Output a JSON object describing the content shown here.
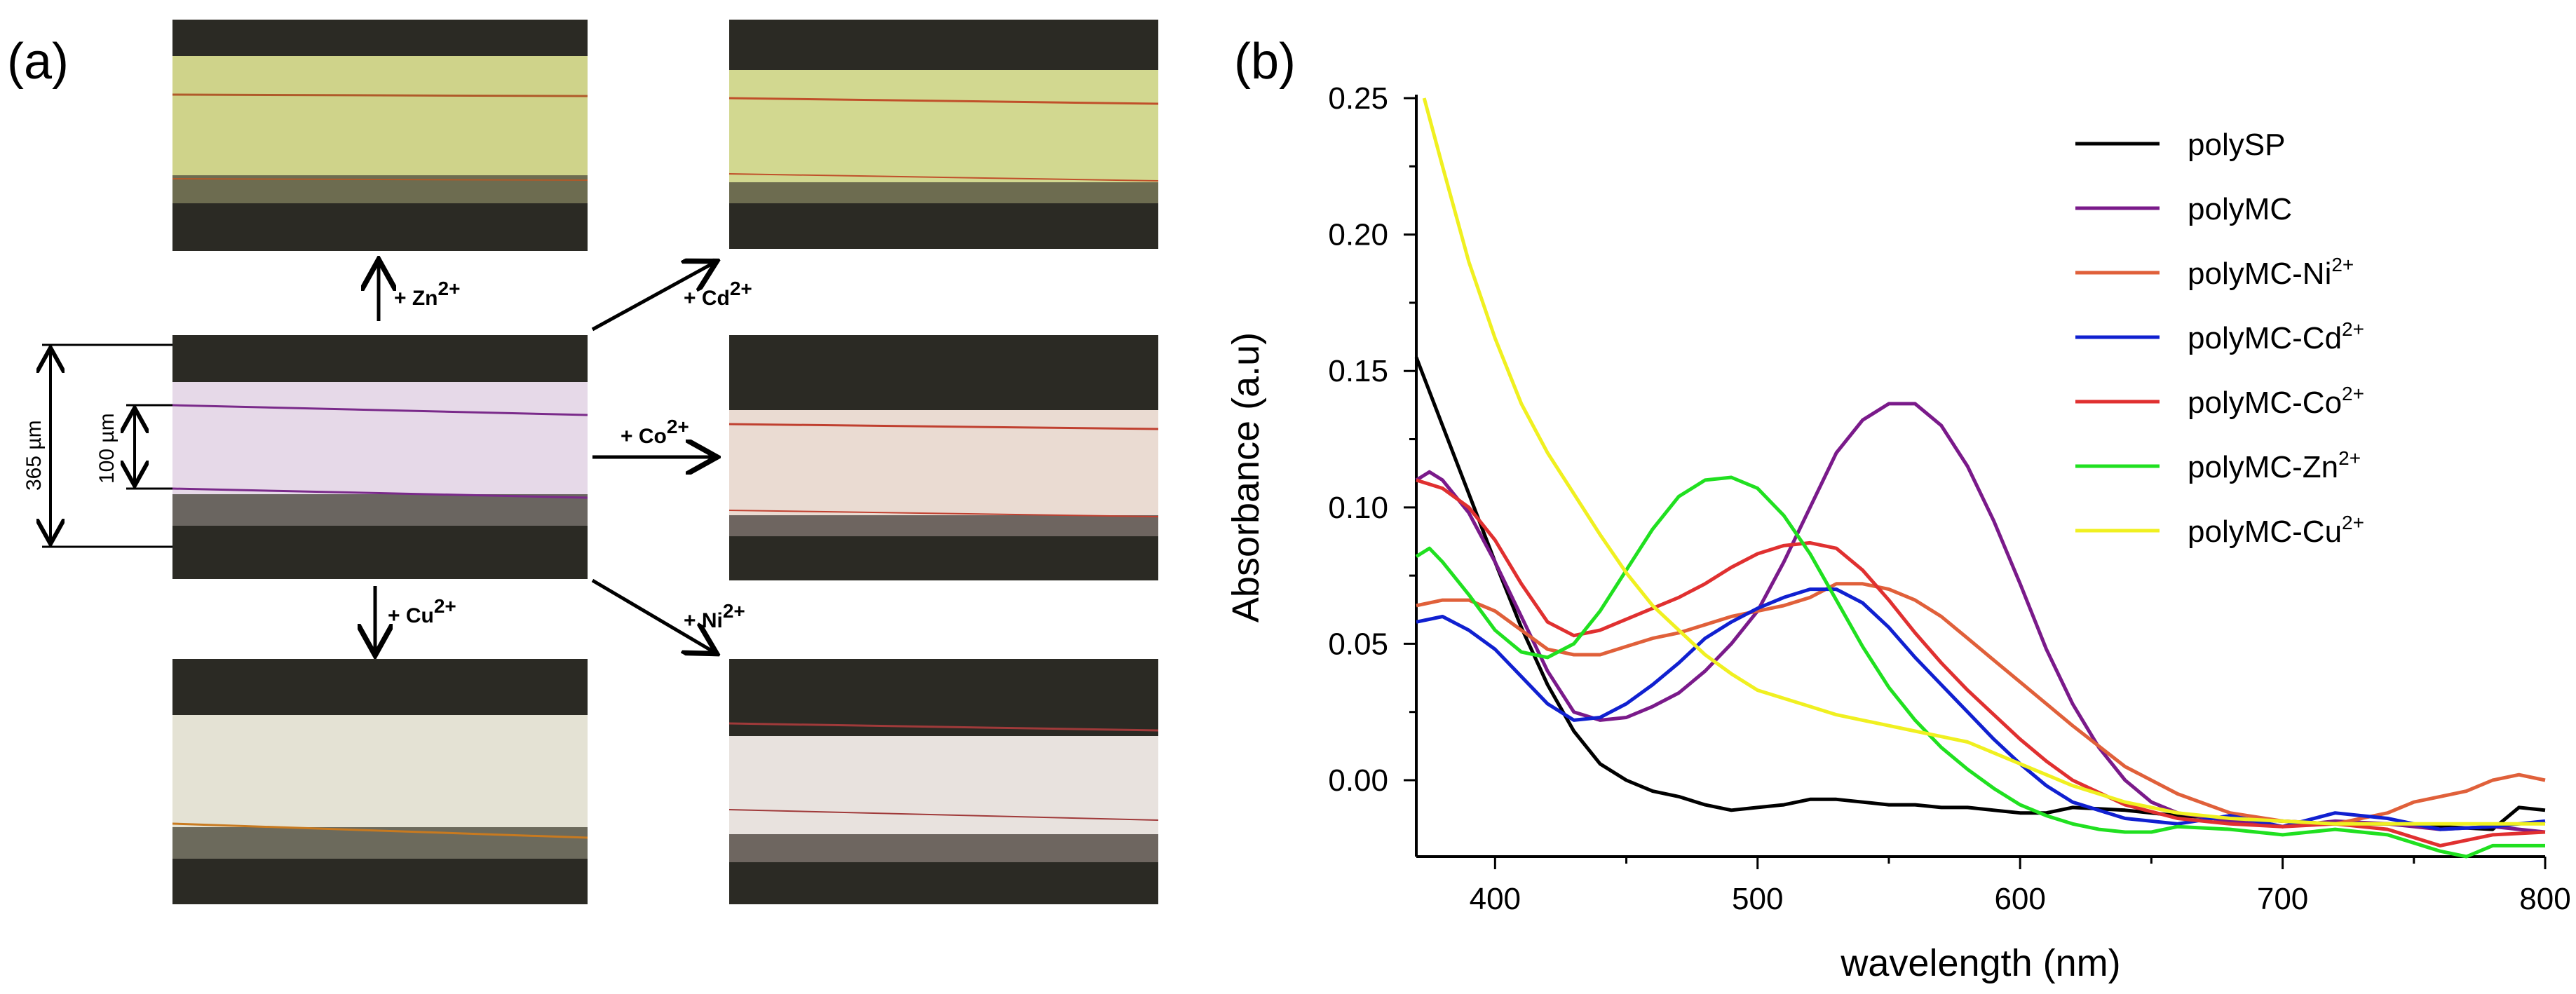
{
  "panel_a": {
    "label": "(a)",
    "dimension_outer": "365 µm",
    "dimension_inner": "100 µm",
    "arrows": [
      {
        "id": "zn",
        "ion": "+ Zn",
        "charge": "2+"
      },
      {
        "id": "cd",
        "ion": "+ Cd",
        "charge": "2+"
      },
      {
        "id": "co",
        "ion": "+ Co",
        "charge": "2+"
      },
      {
        "id": "cu",
        "ion": "+ Cu",
        "charge": "2+"
      },
      {
        "id": "ni",
        "ion": "+ Ni",
        "charge": "2+"
      }
    ],
    "colors": {
      "center_core": "#e6d9e8",
      "center_line": "#7a2a8a",
      "zn_core": "#cfd38a",
      "zn_line": "#b05a2a",
      "cd_core": "#d2d890",
      "cd_line": "#c0502a",
      "co_core": "#eadbd2",
      "co_line": "#c04030",
      "cu_core": "#e4e2d4",
      "cu_line": "#c87a20",
      "ni_core": "#e8e2de",
      "ni_line": "#a03a3a",
      "wall": "#2b2a24"
    }
  },
  "chart_data": {
    "type": "line",
    "panel_label": "(b)",
    "xlabel": "wavelength (nm)",
    "ylabel": "Absorbance (a.u)",
    "xlim": [
      370,
      800
    ],
    "ylim": [
      -0.028,
      0.25
    ],
    "xticks": [
      400,
      500,
      600,
      700,
      800
    ],
    "yticks": [
      0.0,
      0.05,
      0.1,
      0.15,
      0.2,
      0.25
    ],
    "ytick_labels": [
      "0.00",
      "0.05",
      "0.10",
      "0.15",
      "0.20",
      "0.25"
    ],
    "series": [
      {
        "name": "polySP",
        "sup": "",
        "color": "#000000",
        "x": [
          370,
          380,
          390,
          400,
          410,
          420,
          430,
          440,
          450,
          460,
          470,
          480,
          490,
          500,
          510,
          520,
          530,
          540,
          550,
          560,
          570,
          580,
          590,
          600,
          610,
          620,
          640,
          660,
          680,
          700,
          720,
          740,
          760,
          780,
          790,
          800
        ],
        "y": [
          0.155,
          0.13,
          0.105,
          0.08,
          0.056,
          0.035,
          0.018,
          0.006,
          0.0,
          -0.004,
          -0.006,
          -0.009,
          -0.011,
          -0.01,
          -0.009,
          -0.007,
          -0.007,
          -0.008,
          -0.009,
          -0.009,
          -0.01,
          -0.01,
          -0.011,
          -0.012,
          -0.012,
          -0.01,
          -0.011,
          -0.013,
          -0.014,
          -0.015,
          -0.016,
          -0.016,
          -0.017,
          -0.018,
          -0.01,
          -0.011
        ]
      },
      {
        "name": "polyMC",
        "sup": "",
        "color": "#7a1a8a",
        "x": [
          370,
          375,
          380,
          390,
          400,
          410,
          420,
          430,
          440,
          450,
          460,
          470,
          480,
          490,
          500,
          510,
          520,
          530,
          540,
          550,
          560,
          570,
          580,
          590,
          600,
          610,
          620,
          630,
          640,
          650,
          660,
          680,
          700,
          720,
          740,
          760,
          780,
          800
        ],
        "y": [
          0.11,
          0.113,
          0.11,
          0.098,
          0.08,
          0.06,
          0.04,
          0.025,
          0.022,
          0.023,
          0.027,
          0.032,
          0.04,
          0.05,
          0.062,
          0.08,
          0.1,
          0.12,
          0.132,
          0.138,
          0.138,
          0.13,
          0.115,
          0.095,
          0.072,
          0.048,
          0.028,
          0.012,
          0.0,
          -0.008,
          -0.012,
          -0.015,
          -0.017,
          -0.015,
          -0.016,
          -0.018,
          -0.017,
          -0.019
        ]
      },
      {
        "name": "polyMC-Ni",
        "sup": "2+",
        "color": "#e0603a",
        "x": [
          370,
          380,
          390,
          400,
          410,
          420,
          430,
          440,
          450,
          460,
          470,
          480,
          490,
          500,
          510,
          520,
          530,
          540,
          550,
          560,
          570,
          580,
          590,
          600,
          620,
          640,
          660,
          680,
          700,
          720,
          740,
          750,
          760,
          770,
          780,
          790,
          800
        ],
        "y": [
          0.064,
          0.066,
          0.066,
          0.062,
          0.055,
          0.048,
          0.046,
          0.046,
          0.049,
          0.052,
          0.054,
          0.057,
          0.06,
          0.062,
          0.064,
          0.067,
          0.072,
          0.072,
          0.07,
          0.066,
          0.06,
          0.052,
          0.044,
          0.036,
          0.02,
          0.005,
          -0.005,
          -0.012,
          -0.015,
          -0.016,
          -0.012,
          -0.008,
          -0.006,
          -0.004,
          0.0,
          0.002,
          0.0
        ]
      },
      {
        "name": "polyMC-Cd",
        "sup": "2+",
        "color": "#1020d0",
        "x": [
          370,
          380,
          390,
          400,
          410,
          420,
          430,
          440,
          450,
          460,
          470,
          480,
          490,
          500,
          510,
          520,
          530,
          540,
          550,
          560,
          570,
          580,
          590,
          600,
          610,
          620,
          640,
          660,
          680,
          700,
          720,
          740,
          760,
          780,
          800
        ],
        "y": [
          0.058,
          0.06,
          0.055,
          0.048,
          0.038,
          0.028,
          0.022,
          0.023,
          0.028,
          0.035,
          0.043,
          0.052,
          0.058,
          0.063,
          0.067,
          0.07,
          0.07,
          0.065,
          0.056,
          0.045,
          0.035,
          0.025,
          0.015,
          0.006,
          -0.002,
          -0.008,
          -0.014,
          -0.016,
          -0.013,
          -0.017,
          -0.012,
          -0.014,
          -0.018,
          -0.017,
          -0.015
        ]
      },
      {
        "name": "polyMC-Co",
        "sup": "2+",
        "color": "#e03030",
        "x": [
          370,
          380,
          390,
          400,
          410,
          420,
          430,
          440,
          450,
          460,
          470,
          480,
          490,
          500,
          510,
          520,
          530,
          540,
          550,
          560,
          570,
          580,
          590,
          600,
          610,
          620,
          640,
          660,
          680,
          700,
          720,
          740,
          760,
          780,
          800
        ],
        "y": [
          0.11,
          0.107,
          0.1,
          0.088,
          0.072,
          0.058,
          0.053,
          0.055,
          0.059,
          0.063,
          0.067,
          0.072,
          0.078,
          0.083,
          0.086,
          0.087,
          0.085,
          0.077,
          0.066,
          0.054,
          0.043,
          0.033,
          0.024,
          0.015,
          0.007,
          0.0,
          -0.009,
          -0.014,
          -0.016,
          -0.017,
          -0.016,
          -0.018,
          -0.024,
          -0.02,
          -0.019
        ]
      },
      {
        "name": "polyMC-Zn",
        "sup": "2+",
        "color": "#20e020",
        "x": [
          370,
          375,
          380,
          390,
          400,
          410,
          420,
          430,
          440,
          450,
          460,
          470,
          480,
          490,
          500,
          510,
          520,
          530,
          540,
          550,
          560,
          570,
          580,
          590,
          600,
          610,
          620,
          630,
          640,
          650,
          660,
          680,
          700,
          720,
          740,
          760,
          770,
          780,
          800
        ],
        "y": [
          0.082,
          0.085,
          0.08,
          0.068,
          0.055,
          0.047,
          0.045,
          0.05,
          0.062,
          0.077,
          0.092,
          0.104,
          0.11,
          0.111,
          0.107,
          0.097,
          0.083,
          0.066,
          0.049,
          0.034,
          0.022,
          0.012,
          0.004,
          -0.003,
          -0.009,
          -0.013,
          -0.016,
          -0.018,
          -0.019,
          -0.019,
          -0.017,
          -0.018,
          -0.02,
          -0.018,
          -0.02,
          -0.026,
          -0.028,
          -0.024,
          -0.024
        ]
      },
      {
        "name": "polyMC-Cu",
        "sup": "2+",
        "color": "#f0f020",
        "x": [
          373,
          380,
          390,
          400,
          410,
          420,
          430,
          440,
          450,
          460,
          470,
          480,
          490,
          500,
          510,
          520,
          530,
          540,
          550,
          560,
          570,
          580,
          590,
          600,
          610,
          620,
          640,
          660,
          680,
          700,
          720,
          740,
          760,
          780,
          800
        ],
        "y": [
          0.25,
          0.225,
          0.19,
          0.162,
          0.138,
          0.12,
          0.105,
          0.09,
          0.076,
          0.064,
          0.055,
          0.046,
          0.039,
          0.033,
          0.03,
          0.027,
          0.024,
          0.022,
          0.02,
          0.018,
          0.016,
          0.014,
          0.01,
          0.006,
          0.002,
          -0.002,
          -0.008,
          -0.012,
          -0.014,
          -0.015,
          -0.016,
          -0.016,
          -0.016,
          -0.016,
          -0.016
        ]
      }
    ]
  }
}
